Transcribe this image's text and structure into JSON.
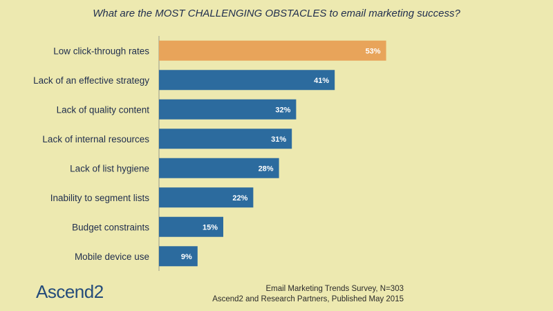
{
  "title": "What are the MOST CHALLENGING OBSTACLES to email marketing success?",
  "logo": {
    "text": "Ascend2"
  },
  "source": {
    "line1": "Email Marketing Trends Survey, N=303",
    "line2": "Ascend2 and Research Partners, Published May 2015"
  },
  "colors": {
    "highlight": "#e8a45a",
    "bar": "#2c6b9e",
    "background": "#ede9b0"
  },
  "chart_data": {
    "type": "bar",
    "orientation": "horizontal",
    "title": "What are the MOST CHALLENGING OBSTACLES to email marketing success?",
    "categories": [
      "Low click-through rates",
      "Lack of an effective strategy",
      "Lack of quality content",
      "Lack of internal resources",
      "Lack of list hygiene",
      "Inability to segment lists",
      "Budget constraints",
      "Mobile device use"
    ],
    "values": [
      53,
      41,
      32,
      31,
      28,
      22,
      15,
      9
    ],
    "value_labels": [
      "53%",
      "41%",
      "32%",
      "31%",
      "28%",
      "22%",
      "15%",
      "9%"
    ],
    "highlighted_index": 0,
    "xlim": [
      0,
      100
    ],
    "grid": false
  }
}
